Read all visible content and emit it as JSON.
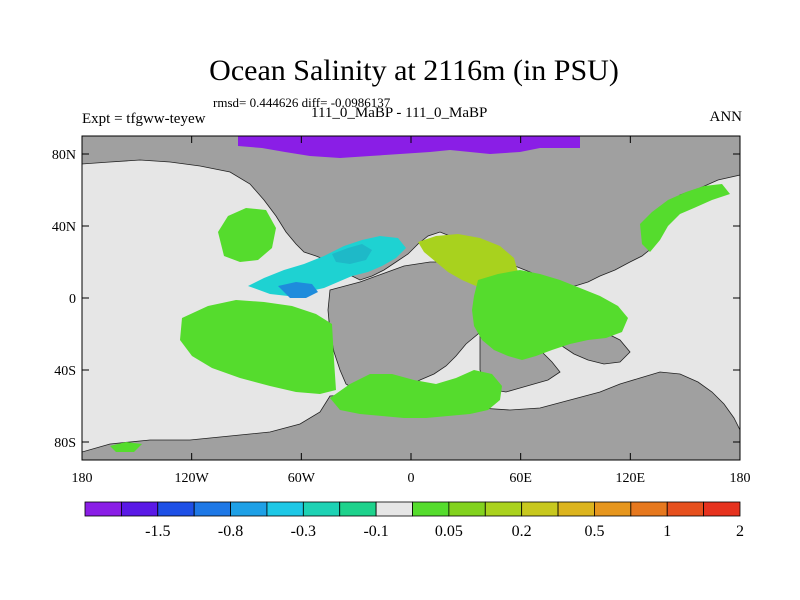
{
  "title": "Ocean Salinity at 2116m (in PSU)",
  "stats_line": "rmsd= 0.444626 diff= -0.0986137",
  "expt_label": "Expt = tfgww-teyew",
  "case_label": "111_0_MaBP - 111_0_MaBP",
  "season_label": "ANN",
  "colors": {
    "land": "#a0a0a0",
    "missing": "#e6e6e6",
    "purple": "#8a1ee6",
    "green": "#55dc2d",
    "yellowgreen": "#a8d21e",
    "cyan": "#1ed2d2",
    "teal": "#1eb9c8",
    "blue": "#1e8cdc"
  },
  "chart_data": {
    "type": "heatmap",
    "title": "Ocean Salinity at 2116m (in PSU)",
    "subtitle": "rmsd= 0.444626 diff= -0.0986137",
    "x_range": [
      -180,
      180
    ],
    "y_range": [
      -90,
      90
    ],
    "x_ticks": [
      {
        "value": -180,
        "label": "180"
      },
      {
        "value": -120,
        "label": "120W"
      },
      {
        "value": -60,
        "label": "60W"
      },
      {
        "value": 0,
        "label": "0"
      },
      {
        "value": 60,
        "label": "60E"
      },
      {
        "value": 120,
        "label": "120E"
      },
      {
        "value": 180,
        "label": "180"
      }
    ],
    "y_ticks": [
      {
        "value": 80,
        "label": "80N"
      },
      {
        "value": 40,
        "label": "40N"
      },
      {
        "value": 0,
        "label": "0"
      },
      {
        "value": -40,
        "label": "40S"
      },
      {
        "value": -80,
        "label": "80S"
      }
    ],
    "colorbar": {
      "colors": [
        "#8a1ee6",
        "#5a19e6",
        "#1e50e6",
        "#1e78e6",
        "#1ea0e6",
        "#1ec8e6",
        "#1ed2b4",
        "#1ed28c",
        "#e6e6e6",
        "#55dc2d",
        "#82d21e",
        "#aad21e",
        "#c8c81e",
        "#dcb41e",
        "#e6961e",
        "#e6781e",
        "#e6501e",
        "#e6321e"
      ],
      "labels": [
        "-1.5",
        "-0.8",
        "-0.3",
        "-0.1",
        "0.05",
        "0.2",
        "0.5",
        "1",
        "2"
      ]
    }
  }
}
